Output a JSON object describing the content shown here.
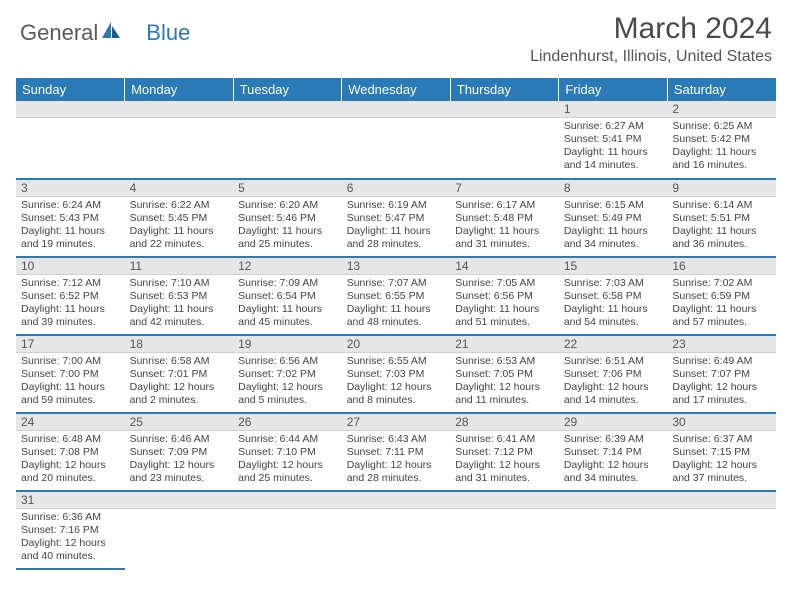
{
  "brand": {
    "part1": "General",
    "part2": "Blue"
  },
  "title": "March 2024",
  "location": "Lindenhurst, Illinois, United States",
  "colors": {
    "header_bg": "#2a7ab8",
    "daynum_bg": "#e6e6e6",
    "text": "#444444"
  },
  "weekdays": [
    "Sunday",
    "Monday",
    "Tuesday",
    "Wednesday",
    "Thursday",
    "Friday",
    "Saturday"
  ],
  "weeks": [
    [
      {
        "day": "",
        "sunrise": "",
        "sunset": "",
        "daylight": ""
      },
      {
        "day": "",
        "sunrise": "",
        "sunset": "",
        "daylight": ""
      },
      {
        "day": "",
        "sunrise": "",
        "sunset": "",
        "daylight": ""
      },
      {
        "day": "",
        "sunrise": "",
        "sunset": "",
        "daylight": ""
      },
      {
        "day": "",
        "sunrise": "",
        "sunset": "",
        "daylight": ""
      },
      {
        "day": "1",
        "sunrise": "Sunrise: 6:27 AM",
        "sunset": "Sunset: 5:41 PM",
        "daylight": "Daylight: 11 hours and 14 minutes."
      },
      {
        "day": "2",
        "sunrise": "Sunrise: 6:25 AM",
        "sunset": "Sunset: 5:42 PM",
        "daylight": "Daylight: 11 hours and 16 minutes."
      }
    ],
    [
      {
        "day": "3",
        "sunrise": "Sunrise: 6:24 AM",
        "sunset": "Sunset: 5:43 PM",
        "daylight": "Daylight: 11 hours and 19 minutes."
      },
      {
        "day": "4",
        "sunrise": "Sunrise: 6:22 AM",
        "sunset": "Sunset: 5:45 PM",
        "daylight": "Daylight: 11 hours and 22 minutes."
      },
      {
        "day": "5",
        "sunrise": "Sunrise: 6:20 AM",
        "sunset": "Sunset: 5:46 PM",
        "daylight": "Daylight: 11 hours and 25 minutes."
      },
      {
        "day": "6",
        "sunrise": "Sunrise: 6:19 AM",
        "sunset": "Sunset: 5:47 PM",
        "daylight": "Daylight: 11 hours and 28 minutes."
      },
      {
        "day": "7",
        "sunrise": "Sunrise: 6:17 AM",
        "sunset": "Sunset: 5:48 PM",
        "daylight": "Daylight: 11 hours and 31 minutes."
      },
      {
        "day": "8",
        "sunrise": "Sunrise: 6:15 AM",
        "sunset": "Sunset: 5:49 PM",
        "daylight": "Daylight: 11 hours and 34 minutes."
      },
      {
        "day": "9",
        "sunrise": "Sunrise: 6:14 AM",
        "sunset": "Sunset: 5:51 PM",
        "daylight": "Daylight: 11 hours and 36 minutes."
      }
    ],
    [
      {
        "day": "10",
        "sunrise": "Sunrise: 7:12 AM",
        "sunset": "Sunset: 6:52 PM",
        "daylight": "Daylight: 11 hours and 39 minutes."
      },
      {
        "day": "11",
        "sunrise": "Sunrise: 7:10 AM",
        "sunset": "Sunset: 6:53 PM",
        "daylight": "Daylight: 11 hours and 42 minutes."
      },
      {
        "day": "12",
        "sunrise": "Sunrise: 7:09 AM",
        "sunset": "Sunset: 6:54 PM",
        "daylight": "Daylight: 11 hours and 45 minutes."
      },
      {
        "day": "13",
        "sunrise": "Sunrise: 7:07 AM",
        "sunset": "Sunset: 6:55 PM",
        "daylight": "Daylight: 11 hours and 48 minutes."
      },
      {
        "day": "14",
        "sunrise": "Sunrise: 7:05 AM",
        "sunset": "Sunset: 6:56 PM",
        "daylight": "Daylight: 11 hours and 51 minutes."
      },
      {
        "day": "15",
        "sunrise": "Sunrise: 7:03 AM",
        "sunset": "Sunset: 6:58 PM",
        "daylight": "Daylight: 11 hours and 54 minutes."
      },
      {
        "day": "16",
        "sunrise": "Sunrise: 7:02 AM",
        "sunset": "Sunset: 6:59 PM",
        "daylight": "Daylight: 11 hours and 57 minutes."
      }
    ],
    [
      {
        "day": "17",
        "sunrise": "Sunrise: 7:00 AM",
        "sunset": "Sunset: 7:00 PM",
        "daylight": "Daylight: 11 hours and 59 minutes."
      },
      {
        "day": "18",
        "sunrise": "Sunrise: 6:58 AM",
        "sunset": "Sunset: 7:01 PM",
        "daylight": "Daylight: 12 hours and 2 minutes."
      },
      {
        "day": "19",
        "sunrise": "Sunrise: 6:56 AM",
        "sunset": "Sunset: 7:02 PM",
        "daylight": "Daylight: 12 hours and 5 minutes."
      },
      {
        "day": "20",
        "sunrise": "Sunrise: 6:55 AM",
        "sunset": "Sunset: 7:03 PM",
        "daylight": "Daylight: 12 hours and 8 minutes."
      },
      {
        "day": "21",
        "sunrise": "Sunrise: 6:53 AM",
        "sunset": "Sunset: 7:05 PM",
        "daylight": "Daylight: 12 hours and 11 minutes."
      },
      {
        "day": "22",
        "sunrise": "Sunrise: 6:51 AM",
        "sunset": "Sunset: 7:06 PM",
        "daylight": "Daylight: 12 hours and 14 minutes."
      },
      {
        "day": "23",
        "sunrise": "Sunrise: 6:49 AM",
        "sunset": "Sunset: 7:07 PM",
        "daylight": "Daylight: 12 hours and 17 minutes."
      }
    ],
    [
      {
        "day": "24",
        "sunrise": "Sunrise: 6:48 AM",
        "sunset": "Sunset: 7:08 PM",
        "daylight": "Daylight: 12 hours and 20 minutes."
      },
      {
        "day": "25",
        "sunrise": "Sunrise: 6:46 AM",
        "sunset": "Sunset: 7:09 PM",
        "daylight": "Daylight: 12 hours and 23 minutes."
      },
      {
        "day": "26",
        "sunrise": "Sunrise: 6:44 AM",
        "sunset": "Sunset: 7:10 PM",
        "daylight": "Daylight: 12 hours and 25 minutes."
      },
      {
        "day": "27",
        "sunrise": "Sunrise: 6:43 AM",
        "sunset": "Sunset: 7:11 PM",
        "daylight": "Daylight: 12 hours and 28 minutes."
      },
      {
        "day": "28",
        "sunrise": "Sunrise: 6:41 AM",
        "sunset": "Sunset: 7:12 PM",
        "daylight": "Daylight: 12 hours and 31 minutes."
      },
      {
        "day": "29",
        "sunrise": "Sunrise: 6:39 AM",
        "sunset": "Sunset: 7:14 PM",
        "daylight": "Daylight: 12 hours and 34 minutes."
      },
      {
        "day": "30",
        "sunrise": "Sunrise: 6:37 AM",
        "sunset": "Sunset: 7:15 PM",
        "daylight": "Daylight: 12 hours and 37 minutes."
      }
    ],
    [
      {
        "day": "31",
        "sunrise": "Sunrise: 6:36 AM",
        "sunset": "Sunset: 7:16 PM",
        "daylight": "Daylight: 12 hours and 40 minutes."
      },
      {
        "day": "",
        "sunrise": "",
        "sunset": "",
        "daylight": ""
      },
      {
        "day": "",
        "sunrise": "",
        "sunset": "",
        "daylight": ""
      },
      {
        "day": "",
        "sunrise": "",
        "sunset": "",
        "daylight": ""
      },
      {
        "day": "",
        "sunrise": "",
        "sunset": "",
        "daylight": ""
      },
      {
        "day": "",
        "sunrise": "",
        "sunset": "",
        "daylight": ""
      },
      {
        "day": "",
        "sunrise": "",
        "sunset": "",
        "daylight": ""
      }
    ]
  ]
}
